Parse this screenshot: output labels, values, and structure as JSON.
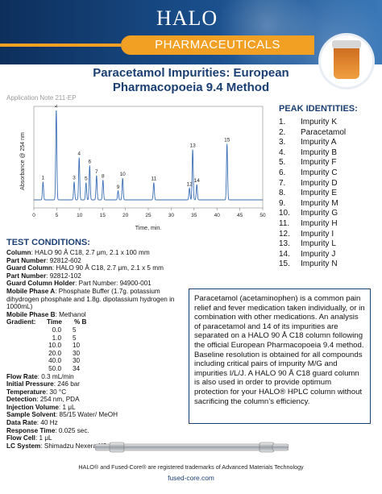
{
  "header": {
    "logo": "HALO",
    "band": "PHARMACEUTICALS"
  },
  "title": {
    "line1": "Paracetamol Impurities: European",
    "line2": "Pharmacopoeia 9.4 Method"
  },
  "app_note": "Application Note 211-EP",
  "chart_data": {
    "type": "line",
    "xlabel": "Time, min.",
    "ylabel": "Absorbance @ 254 nm",
    "xlim": [
      0,
      50
    ],
    "x_ticks": [
      0,
      5,
      10,
      15,
      20,
      25,
      30,
      35,
      40,
      45,
      50
    ],
    "line_color": "#3a6fb5",
    "peaks": [
      {
        "label": "1",
        "t": 2.0,
        "h": 0.2
      },
      {
        "label": "2",
        "t": 4.9,
        "h": 1.0
      },
      {
        "label": "3",
        "t": 8.8,
        "h": 0.2
      },
      {
        "label": "4",
        "t": 9.9,
        "h": 0.47
      },
      {
        "label": "5",
        "t": 11.4,
        "h": 0.19
      },
      {
        "label": "6",
        "t": 12.2,
        "h": 0.38
      },
      {
        "label": "7",
        "t": 13.7,
        "h": 0.27
      },
      {
        "label": "8",
        "t": 15.1,
        "h": 0.22
      },
      {
        "label": "9",
        "t": 18.4,
        "h": 0.1
      },
      {
        "label": "10",
        "t": 19.4,
        "h": 0.24
      },
      {
        "label": "11",
        "t": 26.2,
        "h": 0.19
      },
      {
        "label": "12",
        "t": 34.0,
        "h": 0.13
      },
      {
        "label": "13",
        "t": 34.7,
        "h": 0.56
      },
      {
        "label": "14",
        "t": 35.6,
        "h": 0.17
      },
      {
        "label": "15",
        "t": 42.2,
        "h": 0.62
      }
    ]
  },
  "peak_identities": {
    "title": "PEAK IDENTITIES:",
    "items": [
      {
        "n": "1.",
        "name": "Impurity K"
      },
      {
        "n": "2.",
        "name": "Paracetamol"
      },
      {
        "n": "3.",
        "name": "Impurity A"
      },
      {
        "n": "4.",
        "name": "Impurity B"
      },
      {
        "n": "5.",
        "name": "Impurity F"
      },
      {
        "n": "6.",
        "name": "Impurity C"
      },
      {
        "n": "7.",
        "name": "Impurity D"
      },
      {
        "n": "8.",
        "name": "Impurity E"
      },
      {
        "n": "9.",
        "name": "Impurity M"
      },
      {
        "n": "10.",
        "name": "Impurity G"
      },
      {
        "n": "11.",
        "name": "Impurity H"
      },
      {
        "n": "12.",
        "name": "Impurity I"
      },
      {
        "n": "13.",
        "name": "Impurity L"
      },
      {
        "n": "14.",
        "name": "Impurity J"
      },
      {
        "n": "15.",
        "name": "Impurity N"
      }
    ]
  },
  "test_conditions": {
    "title": "TEST CONDITIONS:",
    "column_label": "Column",
    "column_value": ":  HALO 90 Å C18, 2.7 μm, 2.1 x 100 mm",
    "pn1_label": "Part Number",
    "pn1_value": ":  92812-602",
    "guard_label": "Guard Column",
    "guard_value": ": HALO 90 Å C18, 2.7 μm, 2.1 x 5 mm",
    "pn2_label": "Part Number",
    "pn2_value": ":  92812-102",
    "holder_label": "Guard Column Holder",
    "holder_value": ": Part Number: 94900-001",
    "mpa_label": "Mobile Phase A",
    "mpa_value": ":  Phosphate Buffer (1.7g. potassium",
    "mpa_line2": "dihydrogen phosphate and 1.8g. dipotassium hydrogen in",
    "mpa_line3": "1000mL)",
    "mpb_label": "Mobile Phase B",
    "mpb_value": ": Methanol",
    "gradient_label": "Gradient:",
    "gradient_h1": "Time",
    "gradient_h2": "% B",
    "gradient": [
      {
        "t": "0.0",
        "b": "5"
      },
      {
        "t": "1.0",
        "b": "5"
      },
      {
        "t": "10.0",
        "b": "10"
      },
      {
        "t": "20.0",
        "b": "30"
      },
      {
        "t": "40.0",
        "b": "30"
      },
      {
        "t": "50.0",
        "b": "34"
      }
    ],
    "flow_label": "Flow Rate",
    "flow_value": ":  0.3 mL/min",
    "pressure_label": "Initial Pressure",
    "pressure_value": ":  246 bar",
    "temp_label": "Temperature",
    "temp_value": ":  30 °C",
    "det_label": "Detection",
    "det_value": ":  254 nm, PDA",
    "inj_label": "Injection Volume",
    "inj_value": ":  1 μL",
    "solv_label": "Sample Solvent",
    "solv_value": ":  85/15 Water/ MeOH",
    "rate_label": "Data Rate",
    "rate_value": ":  40 Hz",
    "resp_label": "Response Time",
    "resp_value": ":  0.025 sec.",
    "cell_label": "Flow Cell",
    "cell_value": ":  1 μL",
    "lc_label": "LC System",
    "lc_value": ":  Shimadzu Nexera X2"
  },
  "description": "Paracetamol (acetaminophen) is a common pain relief and fever medication taken individually, or in combination with other medications. An analysis of paracetamol and 14 of its impurities are separated on a HALO 90 Å C18 column following the official European Pharmacopoeia 9.4 method. Baseline resolution is obtained for all compounds including critical pairs of impurity M/G and impurities I/L/J. A HALO 90 Å C18 guard column is also used in order to provide optimum protection for your HALO® HPLC column without sacrificing the column’s efficiency.",
  "footer": {
    "trademark": "HALO® and Fused-Core® are registered trademarks of Advanced Materials Technology",
    "url": "fused-core.com"
  }
}
